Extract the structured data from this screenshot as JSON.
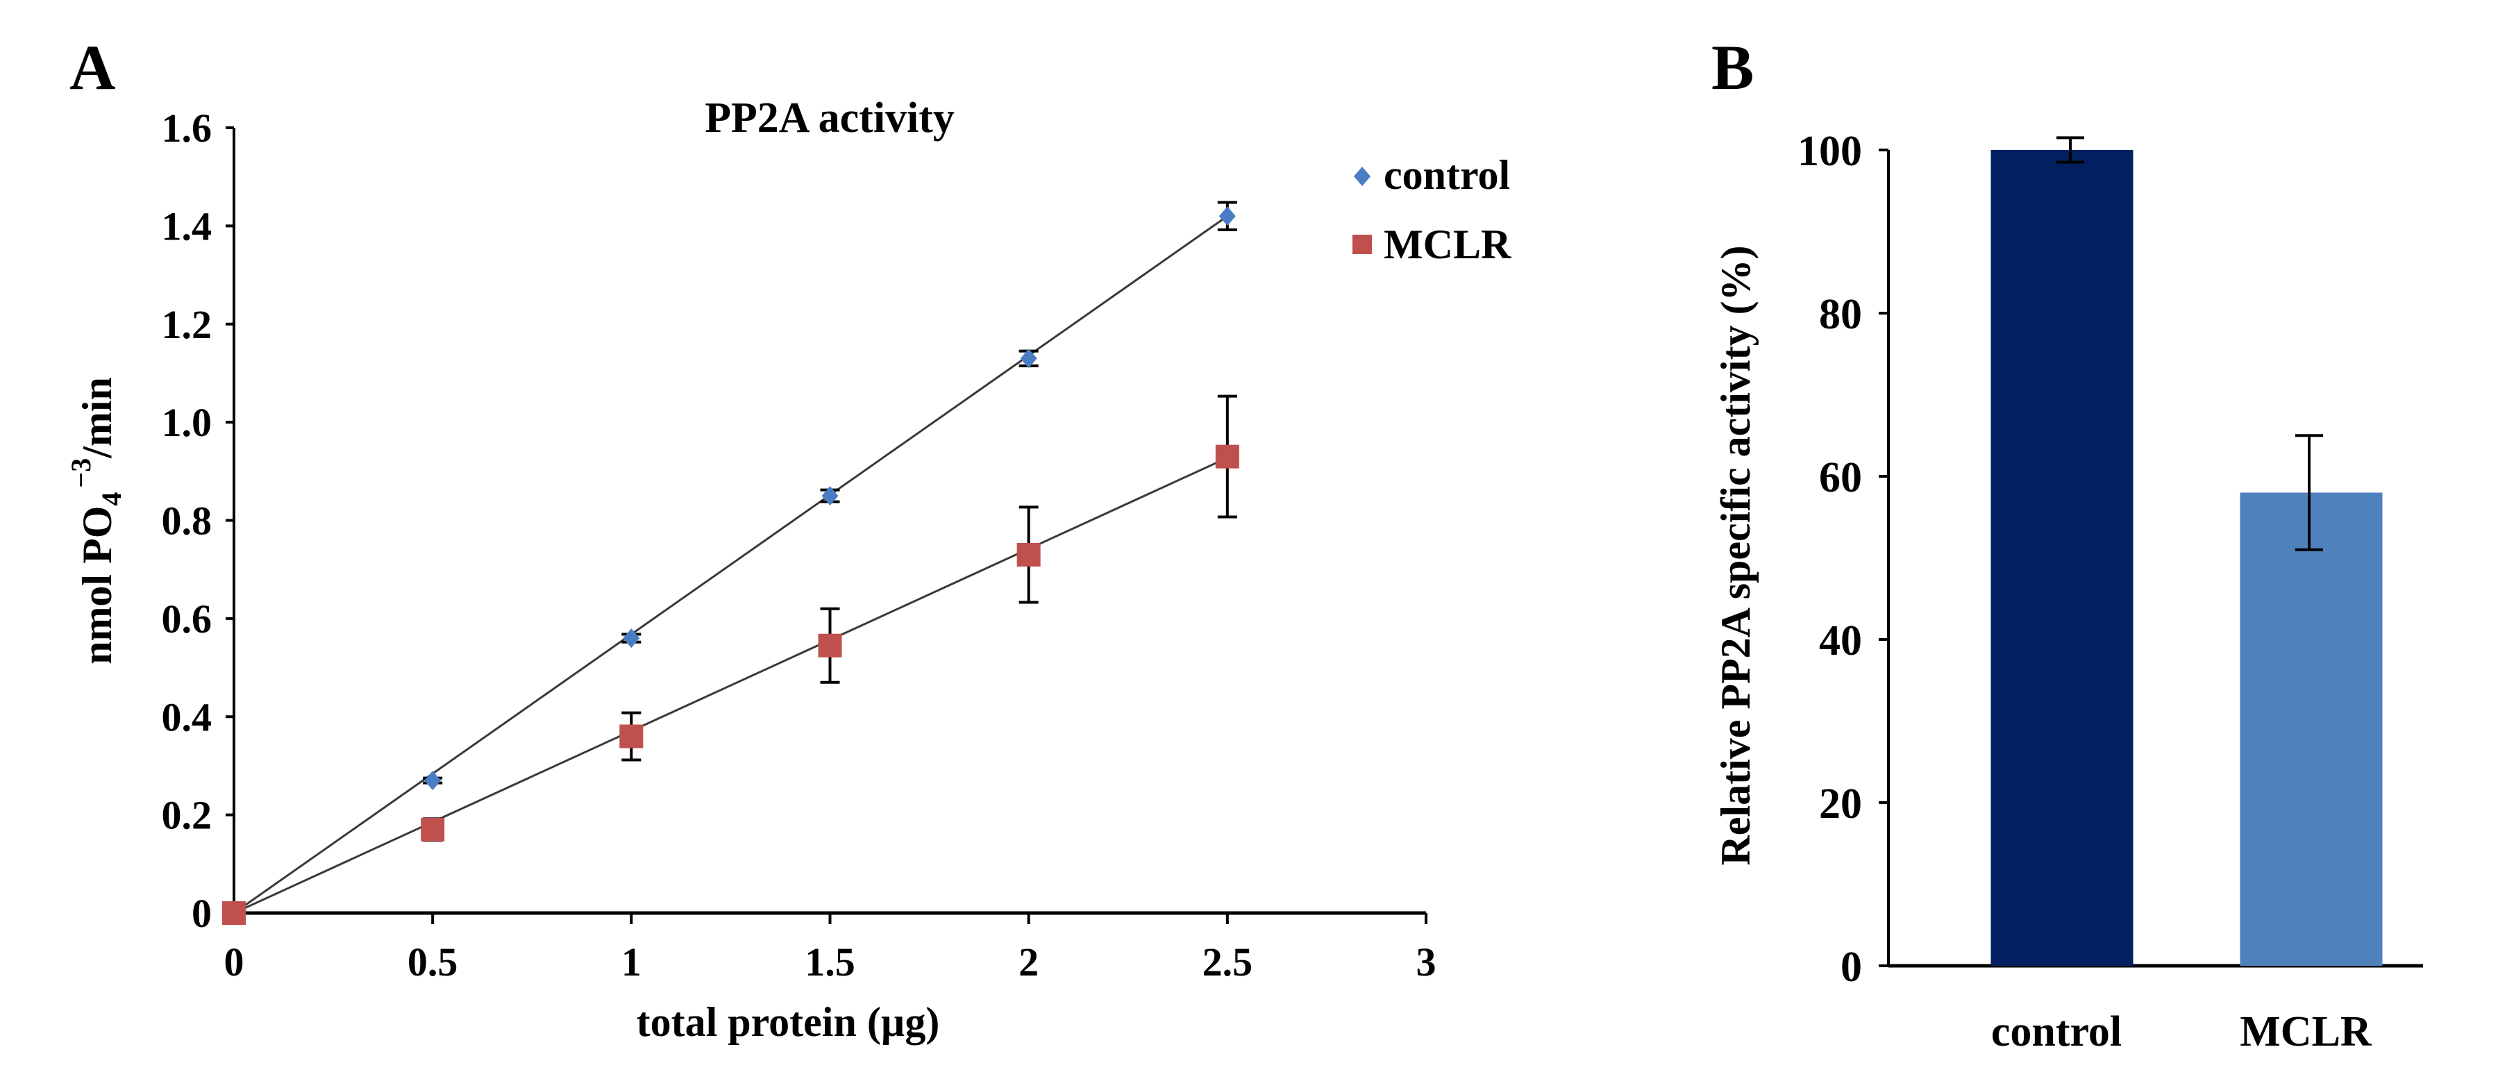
{
  "chart_data": [
    {
      "panel": "A",
      "type": "scatter",
      "title": "PP2A activity",
      "xlabel": "total protein (µg)",
      "ylabel_main": "nmol PO",
      "ylabel_sub": "4",
      "ylabel_sup": "−3",
      "ylabel_tail": "/min",
      "xlim": [
        0,
        3
      ],
      "ylim": [
        0,
        1.6
      ],
      "xticks": [
        "0",
        "0.5",
        "1",
        "1.5",
        "2",
        "2.5",
        "3"
      ],
      "xtick_values": [
        0,
        0.5,
        1,
        1.5,
        2,
        2.5,
        3
      ],
      "yticks": [
        "0",
        "0.2",
        "0.4",
        "0.6",
        "0.8",
        "1.0",
        "1.2",
        "1.4",
        "1.6"
      ],
      "ytick_values": [
        0,
        0.2,
        0.4,
        0.6,
        0.8,
        1.0,
        1.2,
        1.4,
        1.6
      ],
      "legend_position": "top-right",
      "series": [
        {
          "name": "control",
          "marker": "diamond",
          "color": "#4a7ec4",
          "x": [
            0,
            0.5,
            1,
            1.5,
            2,
            2.5
          ],
          "y": [
            0,
            0.27,
            0.56,
            0.85,
            1.13,
            1.42
          ],
          "err": [
            0,
            0.005,
            0.008,
            0.012,
            0.015,
            0.028
          ],
          "trend_slope": 0.568
        },
        {
          "name": "MCLR",
          "marker": "square",
          "color": "#c0504d",
          "x": [
            0,
            0.5,
            1,
            1.5,
            2,
            2.5
          ],
          "y": [
            0,
            0.17,
            0.36,
            0.545,
            0.73,
            0.93
          ],
          "err": [
            0,
            0.022,
            0.048,
            0.075,
            0.097,
            0.123
          ],
          "trend_slope": 0.371
        }
      ]
    },
    {
      "panel": "B",
      "type": "bar",
      "ylabel": "Relative PP2A specific activity (%)",
      "categories": [
        "control",
        "MCLR"
      ],
      "values": [
        100,
        58
      ],
      "err": [
        1.5,
        7
      ],
      "colors": [
        "#022060",
        "#4f81bd"
      ],
      "ylim": [
        0,
        100
      ],
      "yticks": [
        "0",
        "20",
        "40",
        "60",
        "80",
        "100"
      ],
      "ytick_values": [
        0,
        20,
        40,
        60,
        80,
        100
      ]
    }
  ]
}
